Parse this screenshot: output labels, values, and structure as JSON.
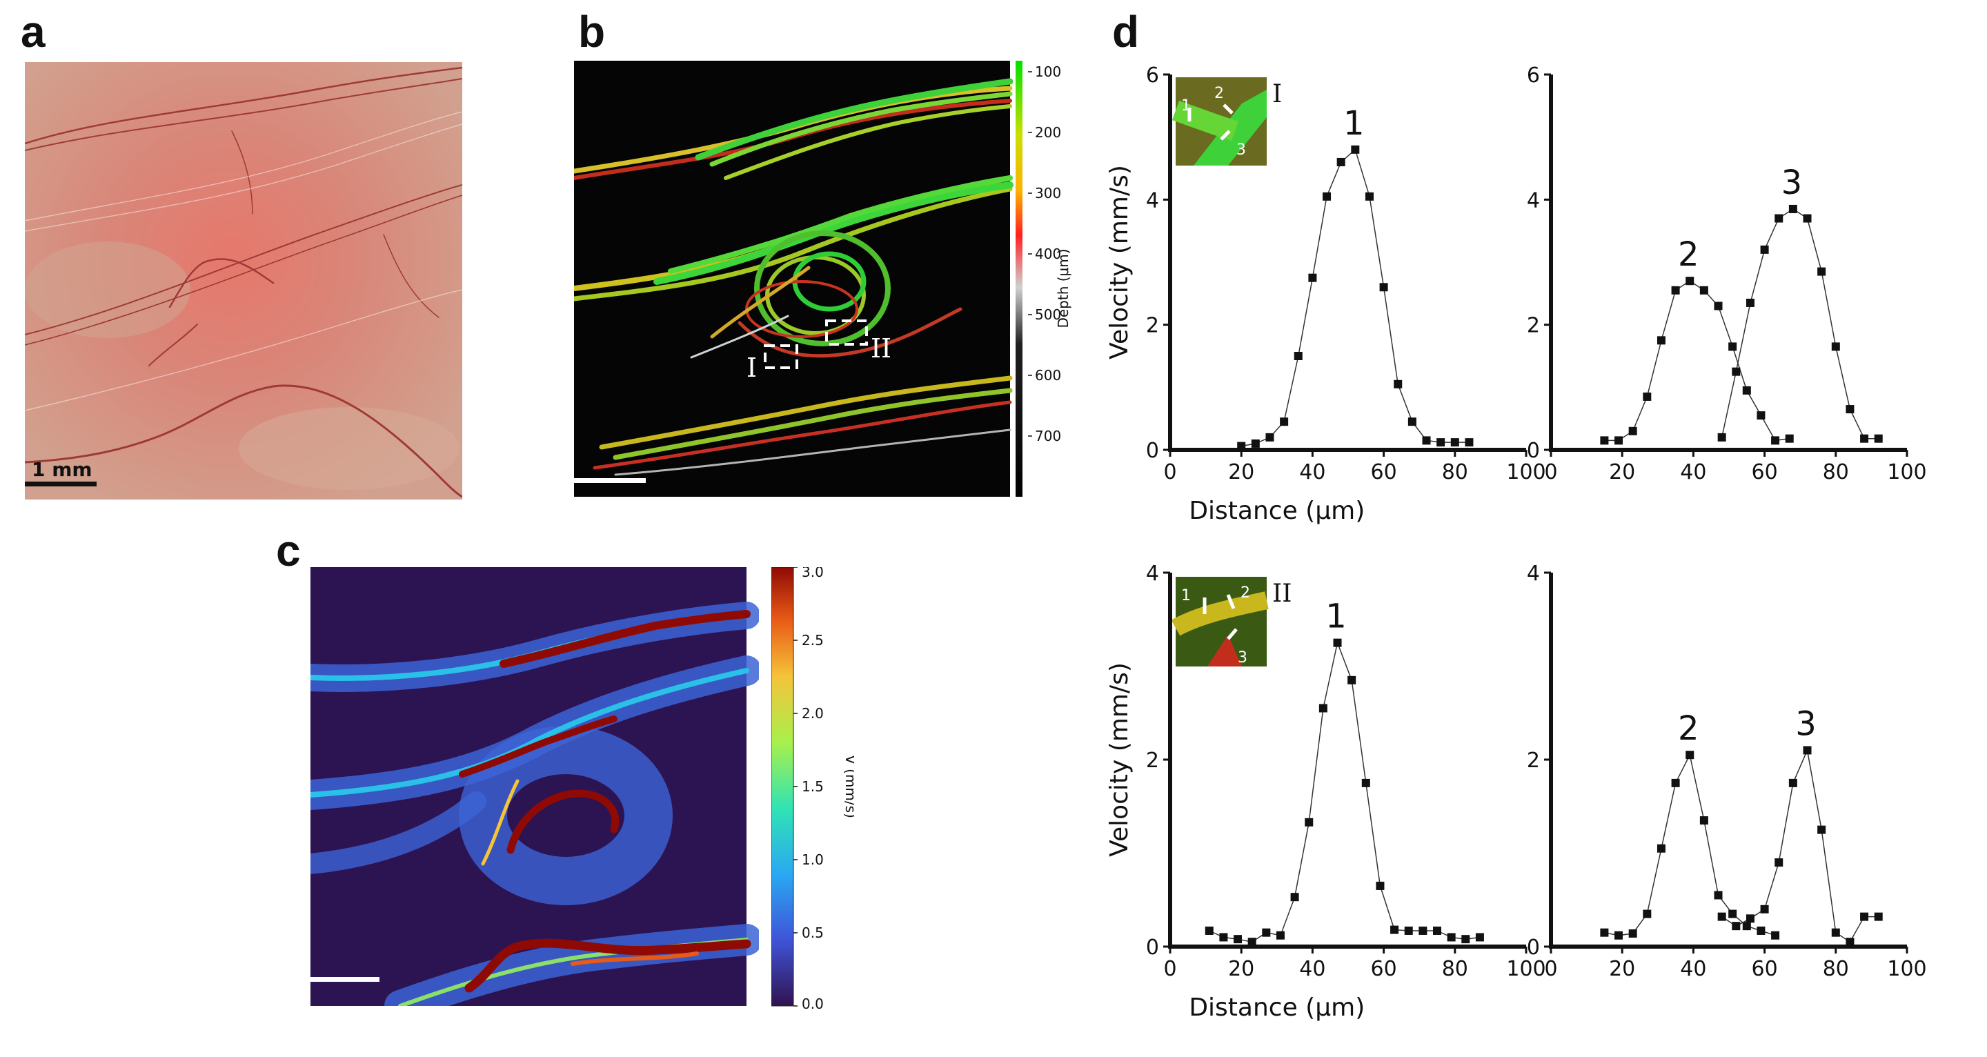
{
  "panel_labels": {
    "a": "a",
    "b": "b",
    "c": "c",
    "d": "d"
  },
  "panel_a": {
    "scale_bar_label": "1 mm"
  },
  "panel_b": {
    "roi_labels": [
      "I",
      "II"
    ],
    "colorbar": {
      "title": "Depth (μm)",
      "ticks": [
        "100",
        "200",
        "300",
        "400",
        "500",
        "600",
        "700"
      ],
      "colors": [
        "#00e000",
        "#c8e000",
        "#ffb000",
        "#ff2020",
        "#d0d0d0",
        "#101010",
        "#000000"
      ]
    }
  },
  "panel_c": {
    "colorbar": {
      "title": "V (mm/s)",
      "ticks": [
        "0.0",
        "0.5",
        "1.0",
        "1.5",
        "2.0",
        "2.5",
        "3.0"
      ],
      "colors": [
        "#30124f",
        "#3f54d8",
        "#2aa8f2",
        "#30e3b4",
        "#a8f04c",
        "#f5c43a",
        "#e85a16",
        "#8f0a04"
      ]
    }
  },
  "panel_d": {
    "xlabel": "Distance (μm)",
    "ylabel": "Velocity (mm/s)",
    "inset_labels": {
      "top": "I",
      "bottom": "II"
    },
    "inset_marks": [
      "1",
      "2",
      "3"
    ]
  },
  "chart_data": [
    {
      "type": "line",
      "xlabel": "Distance (μm)",
      "ylabel": "Velocity (mm/s)",
      "xlim": [
        0,
        100
      ],
      "ylim": [
        0,
        6
      ],
      "xticks": [
        0,
        20,
        40,
        60,
        80,
        100
      ],
      "yticks": [
        0,
        2,
        4,
        6
      ],
      "series": [
        {
          "name": "1",
          "x": [
            20,
            24,
            28,
            32,
            36,
            40,
            44,
            48,
            52,
            56,
            60,
            64,
            68,
            72,
            76,
            80,
            84
          ],
          "y": [
            0.06,
            0.1,
            0.2,
            0.45,
            1.5,
            2.75,
            4.05,
            4.6,
            4.8,
            4.05,
            2.6,
            1.05,
            0.45,
            0.15,
            0.12,
            0.12,
            0.12
          ]
        }
      ]
    },
    {
      "type": "line",
      "xlim": [
        0,
        100
      ],
      "ylim": [
        0,
        6
      ],
      "xticks": [
        0,
        20,
        40,
        60,
        80,
        100
      ],
      "yticks": [
        0,
        2,
        4,
        6
      ],
      "series": [
        {
          "name": "2",
          "x": [
            15,
            19,
            23,
            27,
            31,
            35,
            39,
            43,
            47,
            51,
            55,
            59,
            63,
            67
          ],
          "y": [
            0.15,
            0.15,
            0.3,
            0.85,
            1.75,
            2.55,
            2.7,
            2.55,
            2.3,
            1.65,
            0.95,
            0.55,
            0.15,
            0.18
          ]
        },
        {
          "name": "3",
          "x": [
            48,
            52,
            56,
            60,
            64,
            68,
            72,
            76,
            80,
            84,
            88,
            92
          ],
          "y": [
            0.2,
            1.25,
            2.35,
            3.2,
            3.7,
            3.85,
            3.7,
            2.85,
            1.65,
            0.65,
            0.18,
            0.18
          ]
        }
      ]
    },
    {
      "type": "line",
      "xlabel": "Distance (μm)",
      "ylabel": "Velocity (mm/s)",
      "xlim": [
        0,
        100
      ],
      "ylim": [
        0,
        4
      ],
      "xticks": [
        0,
        20,
        40,
        60,
        80,
        100
      ],
      "yticks": [
        0,
        2,
        4
      ],
      "series": [
        {
          "name": "1",
          "x": [
            11,
            15,
            19,
            23,
            27,
            31,
            35,
            39,
            43,
            47,
            51,
            55,
            59,
            63,
            67,
            71,
            75,
            79,
            83,
            87
          ],
          "y": [
            0.17,
            0.1,
            0.08,
            0.05,
            0.15,
            0.12,
            0.53,
            1.33,
            2.55,
            3.25,
            2.85,
            1.75,
            0.65,
            0.18,
            0.17,
            0.17,
            0.17,
            0.1,
            0.08,
            0.1
          ]
        }
      ]
    },
    {
      "type": "line",
      "xlim": [
        0,
        100
      ],
      "ylim": [
        0,
        4
      ],
      "xticks": [
        0,
        20,
        40,
        60,
        80,
        100
      ],
      "yticks": [
        0,
        2,
        4
      ],
      "series": [
        {
          "name": "2",
          "x": [
            15,
            19,
            23,
            27,
            31,
            35,
            39,
            43,
            47,
            51,
            55,
            59,
            63
          ],
          "y": [
            0.15,
            0.12,
            0.14,
            0.35,
            1.05,
            1.75,
            2.05,
            1.35,
            0.55,
            0.35,
            0.22,
            0.17,
            0.12
          ]
        },
        {
          "name": "3",
          "x": [
            48,
            52,
            56,
            60,
            64,
            68,
            72,
            76,
            80,
            84,
            88,
            92
          ],
          "y": [
            0.32,
            0.22,
            0.3,
            0.4,
            0.9,
            1.75,
            2.1,
            1.25,
            0.15,
            0.05,
            0.32,
            0.32
          ]
        }
      ]
    }
  ]
}
